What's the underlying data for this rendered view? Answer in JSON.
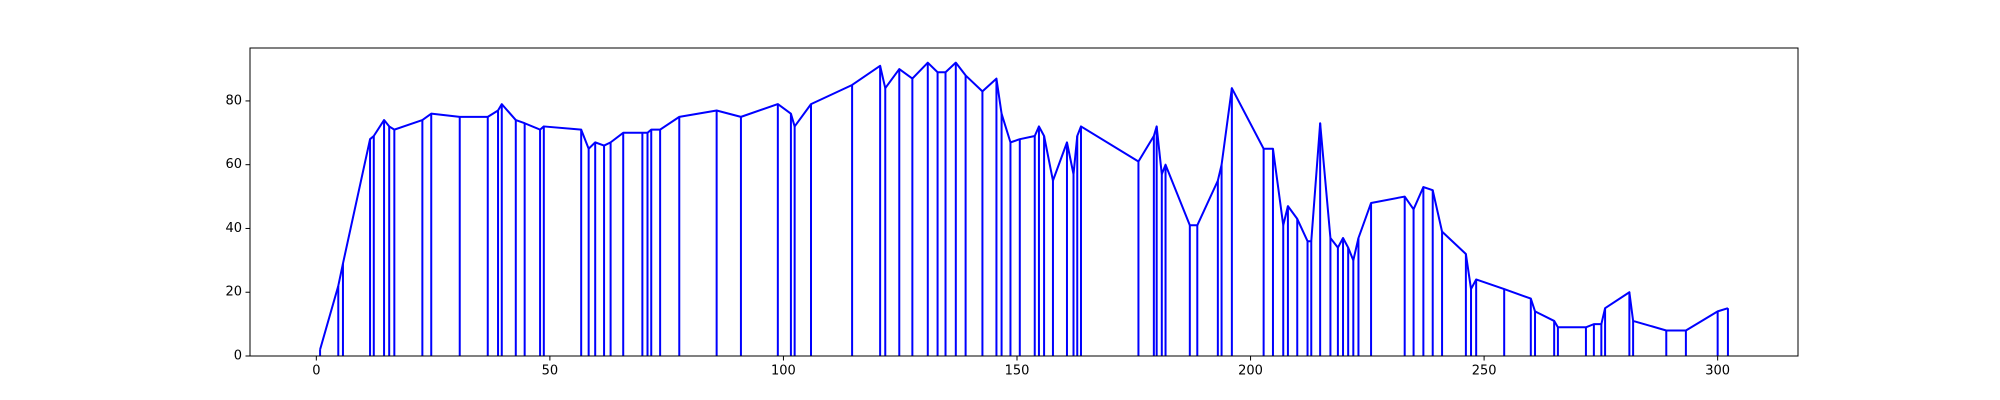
{
  "chart_data": {
    "type": "line",
    "stems": true,
    "series": [
      {
        "color": "#0000ff",
        "x": [
          0.8,
          4.7,
          5.7,
          11.5,
          12.3,
          14.5,
          15.6,
          16.7,
          22.7,
          24.6,
          30.7,
          36.7,
          38.9,
          39.7,
          42.7,
          44.6,
          47.9,
          48.7,
          56.7,
          58.3,
          59.7,
          61.6,
          63,
          65.7,
          69.8,
          70.9,
          71.7,
          73.6,
          77.7,
          85.7,
          90.9,
          98.8,
          101.6,
          102.4,
          105.9,
          114.7,
          120.7,
          121.8,
          124.8,
          127.6,
          130.9,
          133,
          134.7,
          136.9,
          139,
          142.6,
          145.6,
          146.7,
          148.6,
          150.6,
          153.8,
          154.7,
          155.8,
          157.7,
          160.7,
          162.1,
          162.9,
          163.7,
          176,
          179.3,
          179.9,
          181,
          181.8,
          187,
          188.6,
          193,
          193.8,
          196,
          202.8,
          204.8,
          207,
          208,
          210,
          212.2,
          213,
          214.9,
          217.1,
          218.7,
          219.8,
          220.9,
          222,
          223.1,
          225.8,
          233,
          234.9,
          237,
          239,
          241,
          246.1,
          247.2,
          248.3,
          254.3,
          260,
          260.9,
          265,
          265.8,
          271.8,
          273.5,
          275.1,
          275.9,
          281.1,
          281.9,
          289,
          293.2,
          300,
          302.2
        ],
        "values": [
          2,
          22,
          29,
          68,
          69,
          74,
          72,
          71,
          74,
          76,
          75,
          75,
          77,
          79,
          74,
          73,
          71,
          72,
          71,
          65,
          67,
          66,
          67,
          70,
          70,
          70,
          71,
          71,
          75,
          77,
          75,
          79,
          76,
          72,
          79,
          85,
          91,
          84,
          90,
          87,
          92,
          89,
          89,
          92,
          88,
          83,
          87,
          76,
          67,
          68,
          69,
          72,
          69,
          55,
          67,
          57,
          69,
          72,
          61,
          69,
          72,
          57,
          60,
          41,
          41,
          55,
          60,
          84,
          65,
          65,
          41,
          47,
          43,
          36,
          36,
          73,
          37,
          34,
          37,
          34,
          30,
          37,
          48,
          50,
          46,
          53,
          52,
          39,
          32,
          21,
          24,
          21,
          18,
          14,
          11,
          9,
          9,
          10,
          10,
          15,
          20,
          11,
          8,
          8,
          14,
          15
        ]
      }
    ],
    "xlim": [
      -14.2,
      317.2
    ],
    "ylim": [
      0,
      96.6
    ],
    "xticks": [
      0,
      50,
      100,
      150,
      200,
      250,
      300
    ],
    "yticks": [
      0,
      20,
      40,
      60,
      80
    ]
  }
}
